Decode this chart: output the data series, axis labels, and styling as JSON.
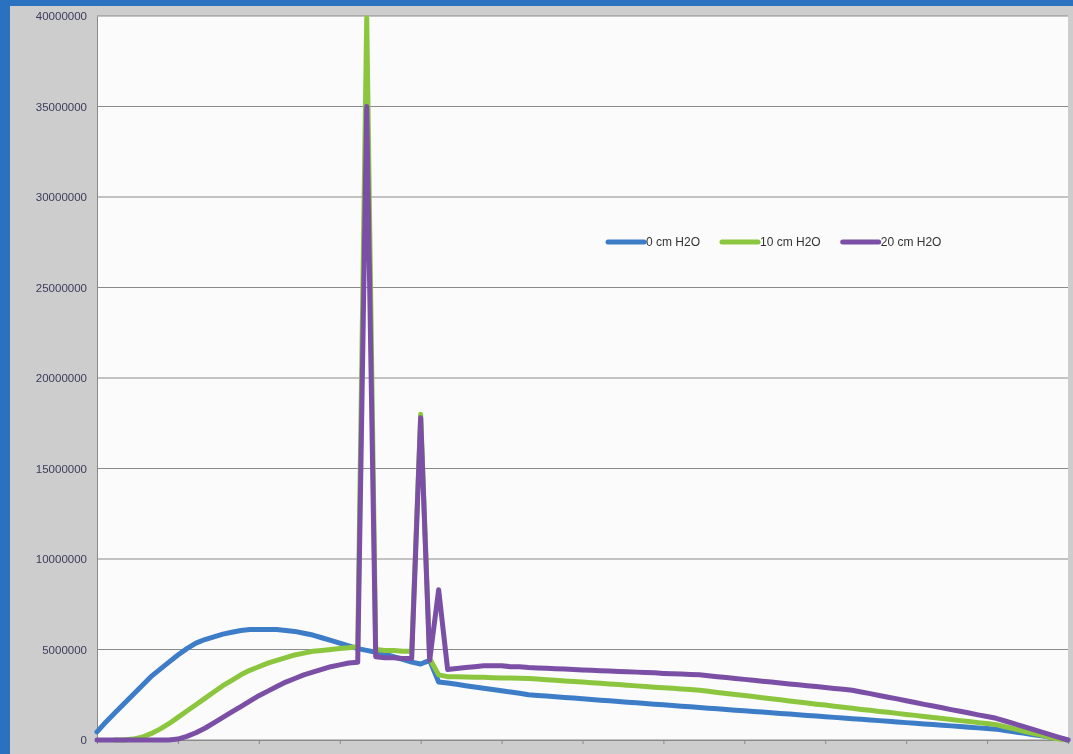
{
  "chart_data": {
    "type": "line",
    "categories": [
      null,
      null,
      null,
      null,
      null,
      null,
      null,
      null,
      null,
      null,
      null,
      null,
      null,
      null,
      null,
      null,
      null,
      null,
      null,
      null,
      null,
      null,
      null,
      null,
      null,
      null,
      null,
      null,
      null,
      null,
      null,
      null,
      null,
      null,
      null,
      null,
      null,
      null,
      null,
      null,
      null,
      null,
      null,
      null,
      null,
      null,
      null,
      null,
      null,
      null,
      null,
      null,
      null,
      null,
      null,
      null,
      null,
      null,
      null,
      null,
      null,
      null,
      null,
      null,
      null,
      null,
      null,
      null,
      null,
      null,
      null,
      null,
      null,
      null,
      null,
      null,
      null,
      null,
      null,
      null,
      null,
      null,
      null,
      null,
      null,
      null,
      null,
      null,
      null,
      null,
      null,
      null,
      null,
      null,
      null,
      null,
      null,
      null,
      null,
      null,
      null,
      null,
      null,
      null,
      null,
      null,
      null,
      null,
      null
    ],
    "ylim": [
      0,
      40000000
    ],
    "yticks": [
      0,
      5000000,
      10000000,
      15000000,
      20000000,
      25000000,
      30000000,
      35000000,
      40000000
    ],
    "grid": "y",
    "legend": "right",
    "tick_labels": "y",
    "marker": "none",
    "line_style": "solid",
    "series": [
      {
        "name": "0 cm H2O",
        "color": "#3d7dc8",
        "values": [
          450000,
          1000000,
          1500000,
          2000000,
          2500000,
          3000000,
          3500000,
          3900000,
          4300000,
          4700000,
          5050000,
          5350000,
          5550000,
          5700000,
          5850000,
          5950000,
          6050000,
          6100000,
          6100000,
          6100000,
          6100000,
          6050000,
          6000000,
          5900000,
          5800000,
          5650000,
          5500000,
          5350000,
          5200000,
          5050000,
          4950000,
          4850000,
          4750000,
          4600000,
          4450000,
          4300000,
          4200000,
          4400000,
          3200000,
          3150000,
          3080000,
          3000000,
          2930000,
          2860000,
          2790000,
          2720000,
          2650000,
          2580000,
          2500000,
          2460000,
          2430000,
          2390000,
          2350000,
          2320000,
          2280000,
          2240000,
          2200000,
          2170000,
          2130000,
          2090000,
          2060000,
          2020000,
          1980000,
          1950000,
          1910000,
          1870000,
          1840000,
          1800000,
          1760000,
          1730000,
          1690000,
          1650000,
          1620000,
          1580000,
          1550000,
          1510000,
          1470000,
          1440000,
          1400000,
          1360000,
          1330000,
          1290000,
          1250000,
          1220000,
          1180000,
          1150000,
          1110000,
          1070000,
          1040000,
          1000000,
          960000,
          930000,
          890000,
          850000,
          820000,
          780000,
          750000,
          710000,
          670000,
          640000,
          600000,
          530000,
          450000,
          380000,
          300000,
          230000,
          160000,
          100000,
          0
        ]
      },
      {
        "name": "10 cm H2O",
        "color": "#8cc63f",
        "values": [
          null,
          null,
          0,
          0,
          50000,
          150000,
          350000,
          600000,
          900000,
          1250000,
          1600000,
          1950000,
          2300000,
          2650000,
          3000000,
          3300000,
          3600000,
          3850000,
          4050000,
          4250000,
          4400000,
          4550000,
          4700000,
          4800000,
          4900000,
          4950000,
          5000000,
          5050000,
          5100000,
          5150000,
          39900000,
          5000000,
          4950000,
          4950000,
          4900000,
          4900000,
          18000000,
          4500000,
          3600000,
          3500000,
          3490000,
          3480000,
          3470000,
          3460000,
          3440000,
          3430000,
          3420000,
          3410000,
          3400000,
          3370000,
          3330000,
          3300000,
          3260000,
          3230000,
          3200000,
          3160000,
          3130000,
          3090000,
          3060000,
          3030000,
          2990000,
          2960000,
          2920000,
          2890000,
          2860000,
          2820000,
          2790000,
          2750000,
          2690000,
          2630000,
          2570000,
          2510000,
          2460000,
          2400000,
          2340000,
          2280000,
          2220000,
          2160000,
          2100000,
          2040000,
          1980000,
          1930000,
          1870000,
          1810000,
          1750000,
          1690000,
          1640000,
          1580000,
          1530000,
          1470000,
          1410000,
          1360000,
          1300000,
          1240000,
          1190000,
          1130000,
          1070000,
          1020000,
          960000,
          910000,
          850000,
          730000,
          620000,
          500000,
          380000,
          270000,
          150000,
          50000,
          0
        ]
      },
      {
        "name": "20 cm H2O",
        "color": "#7b4fa6",
        "values": [
          0,
          0,
          0,
          0,
          0,
          0,
          0,
          0,
          0,
          50000,
          200000,
          400000,
          650000,
          950000,
          1250000,
          1550000,
          1850000,
          2150000,
          2450000,
          2700000,
          2950000,
          3200000,
          3400000,
          3600000,
          3750000,
          3900000,
          4050000,
          4150000,
          4250000,
          4300000,
          35000000,
          4600000,
          4550000,
          4550000,
          4500000,
          4500000,
          17800000,
          4400000,
          8300000,
          3900000,
          3950000,
          4000000,
          4050000,
          4100000,
          4100000,
          4100000,
          4050000,
          4050000,
          4000000,
          3980000,
          3960000,
          3940000,
          3920000,
          3890000,
          3870000,
          3850000,
          3830000,
          3810000,
          3790000,
          3770000,
          3750000,
          3730000,
          3710000,
          3680000,
          3660000,
          3640000,
          3620000,
          3600000,
          3550000,
          3500000,
          3450000,
          3400000,
          3350000,
          3300000,
          3250000,
          3200000,
          3150000,
          3100000,
          3050000,
          3000000,
          2950000,
          2900000,
          2850000,
          2800000,
          2750000,
          2650000,
          2560000,
          2460000,
          2360000,
          2270000,
          2170000,
          2070000,
          1970000,
          1880000,
          1780000,
          1680000,
          1590000,
          1490000,
          1390000,
          1300000,
          1200000,
          1050000,
          900000,
          750000,
          600000,
          450000,
          300000,
          150000,
          0
        ]
      }
    ]
  }
}
